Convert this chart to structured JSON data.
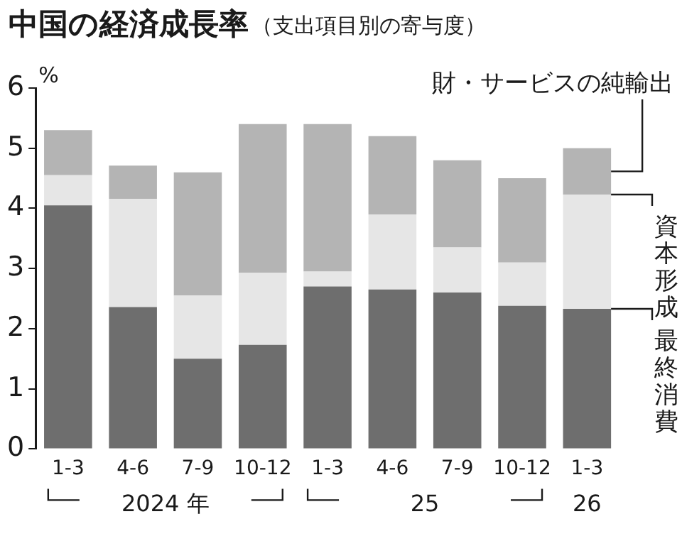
{
  "chart_data": {
    "type": "bar",
    "title": "中国の経済成長率",
    "subtitle": "（支出項目別の寄与度）",
    "ylabel": "%",
    "categories": [
      "1-3",
      "4-6",
      "7-9",
      "10-12",
      "1-3",
      "4-6",
      "7-9",
      "10-12",
      "1-3"
    ],
    "series": [
      {
        "name": "最終消費",
        "color": "#6e6e6e",
        "values": [
          4.05,
          2.36,
          1.5,
          1.73,
          2.7,
          2.65,
          2.6,
          2.38,
          2.33
        ]
      },
      {
        "name": "資本形成",
        "color": "#e6e6e6",
        "values": [
          0.5,
          1.8,
          1.05,
          1.2,
          0.25,
          1.25,
          0.75,
          0.72,
          1.9
        ]
      },
      {
        "name": "財・サービスの純輸出",
        "color": "#b4b4b4",
        "values": [
          0.75,
          0.55,
          2.05,
          2.47,
          2.45,
          1.3,
          1.45,
          1.4,
          0.77
        ]
      }
    ],
    "stacked": true,
    "ylim": [
      0,
      6
    ],
    "yticks": [
      0,
      1,
      2,
      3,
      4,
      5,
      6
    ],
    "grid": false,
    "legend": "right",
    "annotations": [
      "2024 年",
      "25",
      "26"
    ]
  }
}
